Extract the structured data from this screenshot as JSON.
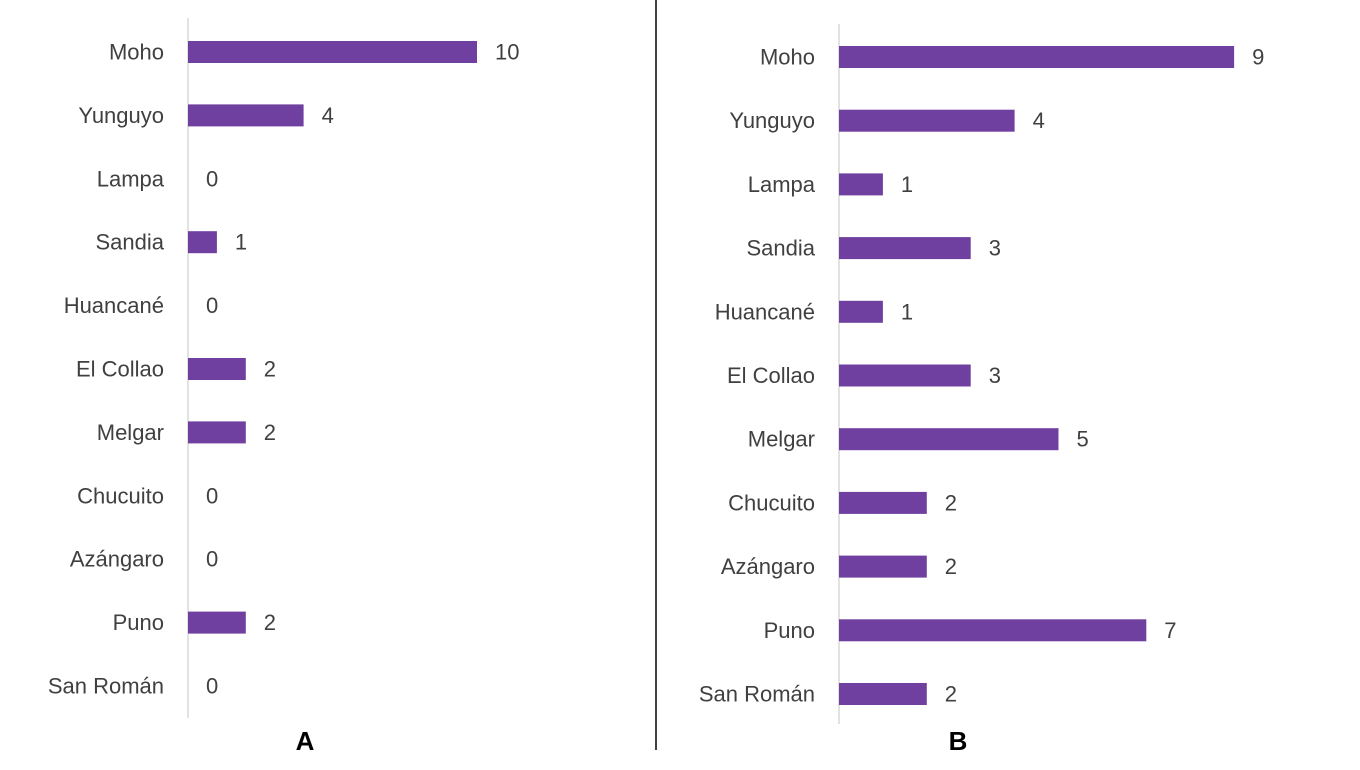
{
  "colors": {
    "bar": "#7040A0",
    "axis": "#D9D9D9",
    "divider": "#404040",
    "text": "#404040"
  },
  "chart_data": [
    {
      "type": "bar",
      "orientation": "horizontal",
      "panel_label": "A",
      "categories": [
        "Moho",
        "Yunguyo",
        "Lampa",
        "Sandia",
        "Huancané",
        "El Collao",
        "Melgar",
        "Chucuito",
        "Azángaro",
        "Puno",
        "San Román"
      ],
      "values": [
        10,
        4,
        0,
        1,
        0,
        2,
        2,
        0,
        0,
        2,
        0
      ],
      "data_labels": true,
      "grid": false
    },
    {
      "type": "bar",
      "orientation": "horizontal",
      "panel_label": "B",
      "categories": [
        "Moho",
        "Yunguyo",
        "Lampa",
        "Sandia",
        "Huancané",
        "El Collao",
        "Melgar",
        "Chucuito",
        "Azángaro",
        "Puno",
        "San Román"
      ],
      "values": [
        9,
        4,
        1,
        3,
        1,
        3,
        5,
        2,
        2,
        7,
        2
      ],
      "data_labels": true,
      "grid": false
    }
  ]
}
